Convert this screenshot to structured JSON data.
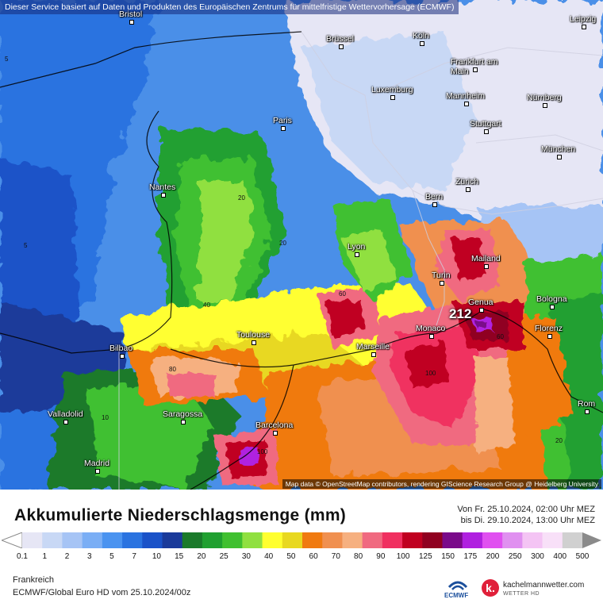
{
  "header_note": "Dieser Service basiert auf Daten und Produkten des Europäischen Zentrums für mittelfristige Wettervorhersage (ECMWF)",
  "map": {
    "attribution": "Map data © OpenStreetMap contributors, rendering GIScience Research Group @ Heidelberg University",
    "max_value": "212",
    "cities": [
      "Bristol",
      "Brüssel",
      "Köln",
      "Leipzig",
      "Frankfurt am Main",
      "Luxemburg",
      "Mannheim",
      "Nürnberg",
      "Paris",
      "Stuttgart",
      "München",
      "Nantes",
      "Zürich",
      "Bern",
      "Lyon",
      "Mailand",
      "Turin",
      "Genua",
      "Bologna",
      "Florenz",
      "Monaco",
      "Marseille",
      "Toulouse",
      "Bilbao",
      "Saragossa",
      "Valladolid",
      "Barcelona",
      "Madrid",
      "Rom"
    ],
    "contour_labels": [
      "5",
      "10",
      "20",
      "40",
      "60",
      "80",
      "100",
      "150"
    ]
  },
  "legend": {
    "title": "Akkumulierte Niederschlagsmenge (mm)",
    "period_from": "Von Fr. 25.10.2024, 02:00 Uhr MEZ",
    "period_to": "bis Di. 29.10.2024, 13:00 Uhr MEZ",
    "region": "Frankreich",
    "model": "ECMWF/Global Euro HD vom  25.10.2024/00z",
    "colors": [
      "#e6e6f5",
      "#c8d8f5",
      "#a6c4f5",
      "#7aaef5",
      "#4a93f0",
      "#2a73e0",
      "#1a52c8",
      "#1a3a9a",
      "#1a7a2a",
      "#20a030",
      "#40c030",
      "#90e040",
      "#ffff30",
      "#e8d820",
      "#f07a10",
      "#f09050",
      "#f6b080",
      "#f06a80",
      "#f03060",
      "#c00020",
      "#900020",
      "#7a0a8a",
      "#b020e0",
      "#e050f0",
      "#e090f0",
      "#f4c4f4",
      "#f8e0f8",
      "#d0d0d0"
    ],
    "ticks": [
      "0.1",
      "1",
      "2",
      "3",
      "5",
      "7",
      "10",
      "15",
      "20",
      "25",
      "30",
      "40",
      "50",
      "60",
      "70",
      "80",
      "90",
      "100",
      "125",
      "150",
      "175",
      "200",
      "250",
      "300",
      "400",
      "500"
    ]
  },
  "logos": {
    "ecmwf": "ECMWF",
    "site": "kachelmannwetter.com",
    "site_sub": "WETTER HD",
    "k_letter": "k."
  }
}
